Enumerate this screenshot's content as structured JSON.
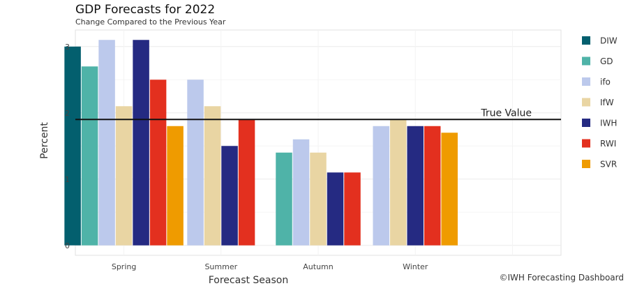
{
  "chart_data": {
    "type": "bar",
    "title": "GDP Forecasts for 2022",
    "subtitle": "Change Compared to the Previous Year",
    "xlabel": "Forecast Season",
    "ylabel": "Percent",
    "ylim": [
      -0.15,
      3.25
    ],
    "yticks": [
      0,
      1,
      2,
      3
    ],
    "grid": true,
    "legend": "right",
    "categories": [
      "Spring",
      "Summer",
      "Autumn",
      "Winter"
    ],
    "series": [
      {
        "name": "DIW",
        "color": "#035f6e",
        "values": [
          3.0,
          null,
          null,
          null
        ]
      },
      {
        "name": "GD",
        "color": "#4fb3a8",
        "values": [
          2.7,
          null,
          1.4,
          null
        ]
      },
      {
        "name": "ifo",
        "color": "#bcc9ec",
        "values": [
          3.1,
          2.5,
          1.6,
          1.8
        ]
      },
      {
        "name": "IfW",
        "color": "#e9d5a3",
        "values": [
          2.1,
          2.1,
          1.4,
          1.9
        ]
      },
      {
        "name": "IWH",
        "color": "#252a82",
        "values": [
          3.1,
          1.5,
          1.1,
          1.8
        ]
      },
      {
        "name": "RWI",
        "color": "#e3301f",
        "values": [
          2.5,
          1.9,
          1.1,
          1.8
        ]
      },
      {
        "name": "SVR",
        "color": "#ef9b00",
        "values": [
          1.8,
          null,
          null,
          1.7
        ]
      }
    ],
    "reference_line": {
      "value": 1.9,
      "label": "True Value"
    }
  },
  "credit": "©IWH Forecasting Dashboard"
}
